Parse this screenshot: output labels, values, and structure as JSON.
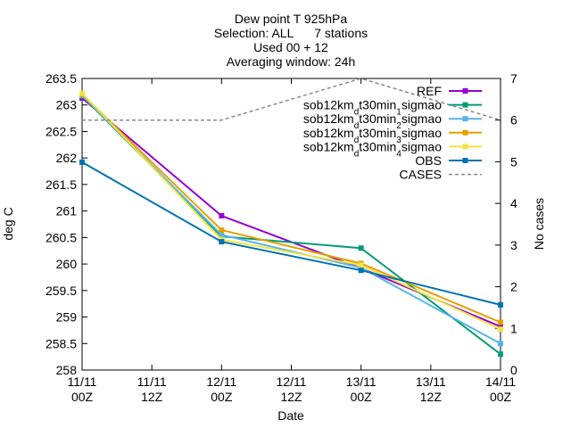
{
  "chart_data": {
    "type": "line",
    "title_lines": [
      "Dew point T 925hPa",
      "Selection: ALL      7 stations",
      "Used 00 + 12",
      "Averaging window: 24h"
    ],
    "xlabel": "Date",
    "ylabel": "deg C",
    "y2label": "No cases",
    "x_ticks": [
      {
        "x": 0,
        "line1": "11/11",
        "line2": "00Z"
      },
      {
        "x": 12,
        "line1": "11/11",
        "line2": "12Z"
      },
      {
        "x": 24,
        "line1": "12/11",
        "line2": "00Z"
      },
      {
        "x": 36,
        "line1": "12/11",
        "line2": "12Z"
      },
      {
        "x": 48,
        "line1": "13/11",
        "line2": "00Z"
      },
      {
        "x": 60,
        "line1": "13/11",
        "line2": "12Z"
      },
      {
        "x": 72,
        "line1": "14/11",
        "line2": "00Z"
      }
    ],
    "xlim": [
      0,
      72
    ],
    "ylim": [
      258,
      263.5
    ],
    "y_ticks": [
      "258",
      "258.5",
      "259",
      "259.5",
      "260",
      "260.5",
      "261",
      "261.5",
      "262",
      "262.5",
      "263",
      "263.5"
    ],
    "y2lim": [
      0,
      7
    ],
    "y2_ticks": [
      "0",
      "1",
      "2",
      "3",
      "4",
      "5",
      "6",
      "7"
    ],
    "legend_position": "top-right",
    "series": [
      {
        "name": "REF",
        "color": "#9400d3",
        "marker": "square",
        "x": [
          0,
          24,
          48,
          72
        ],
        "values": [
          263.13,
          260.91,
          259.92,
          258.82
        ]
      },
      {
        "name_parts": [
          [
            "sob12km",
            false
          ],
          [
            "d",
            true
          ],
          [
            "t30min",
            false
          ],
          [
            "1",
            true
          ],
          [
            "sigmao",
            false
          ]
        ],
        "color": "#009e73",
        "marker": "square",
        "x": [
          0,
          24,
          48,
          72
        ],
        "values": [
          263.17,
          260.52,
          260.3,
          258.3
        ]
      },
      {
        "name_parts": [
          [
            "sob12km",
            false
          ],
          [
            "d",
            true
          ],
          [
            "t30min",
            false
          ],
          [
            "2",
            true
          ],
          [
            "sigmao",
            false
          ]
        ],
        "color": "#56b4e9",
        "marker": "square",
        "x": [
          0,
          24,
          48,
          72
        ],
        "values": [
          263.18,
          260.55,
          259.93,
          258.5
        ]
      },
      {
        "name_parts": [
          [
            "sob12km",
            false
          ],
          [
            "d",
            true
          ],
          [
            "t30min",
            false
          ],
          [
            "3",
            true
          ],
          [
            "sigmao",
            false
          ]
        ],
        "color": "#e69f00",
        "marker": "square",
        "x": [
          0,
          24,
          48,
          72
        ],
        "values": [
          263.2,
          260.64,
          260.01,
          258.9
        ]
      },
      {
        "name_parts": [
          [
            "sob12km",
            false
          ],
          [
            "d",
            true
          ],
          [
            "t30min",
            false
          ],
          [
            "4",
            true
          ],
          [
            "sigmao",
            false
          ]
        ],
        "color": "#f0e442",
        "marker": "square",
        "x": [
          0,
          24,
          48,
          72
        ],
        "values": [
          263.22,
          260.46,
          259.98,
          258.77
        ]
      },
      {
        "name": "OBS",
        "color": "#0072b2",
        "marker": "square",
        "x": [
          0,
          24,
          48,
          72
        ],
        "values": [
          261.92,
          260.42,
          259.88,
          259.23
        ]
      },
      {
        "name": "CASES",
        "color": "#888888",
        "dashed": true,
        "axis": "y2",
        "x": [
          0,
          24,
          48,
          72
        ],
        "values": [
          6,
          6,
          7,
          6
        ]
      }
    ]
  }
}
